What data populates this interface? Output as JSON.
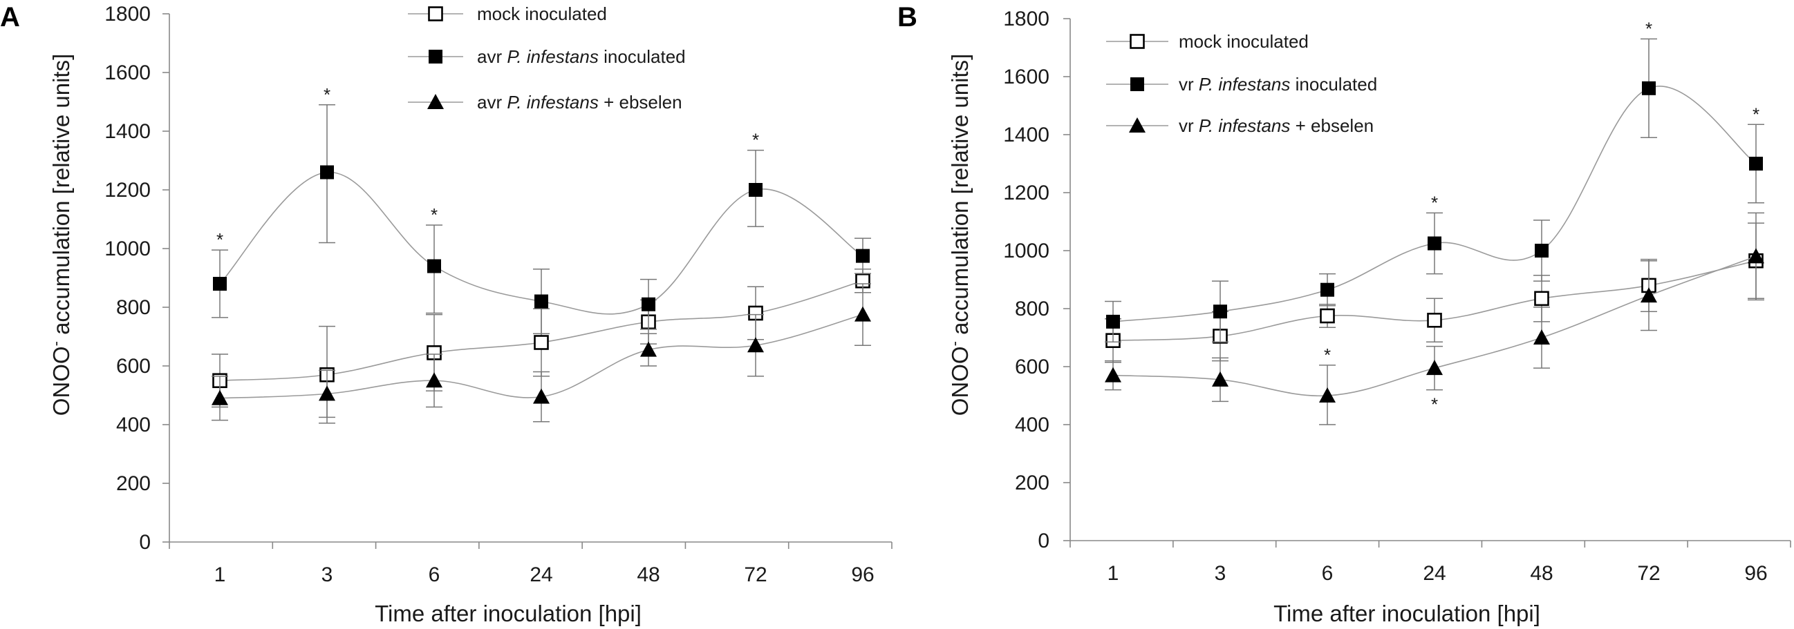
{
  "chart_data": [
    {
      "panel": "A",
      "type": "line",
      "xlabel": "Time after inoculation [hpi]",
      "ylabel_parts": [
        "ONOO",
        "-",
        " accumulation [relative units]"
      ],
      "categories": [
        "1",
        "3",
        "6",
        "24",
        "48",
        "72",
        "96"
      ],
      "ylim": [
        0,
        1800
      ],
      "yticks": [
        "0",
        "200",
        "400",
        "600",
        "800",
        "1000",
        "1200",
        "1400",
        "1600",
        "1800"
      ],
      "legend_position": "top-center",
      "series": [
        {
          "name": "mock inoculated",
          "legend_parts": [
            "mock inoculated"
          ],
          "marker": "square-open",
          "values": [
            550,
            570,
            645,
            680,
            750,
            780,
            890
          ],
          "err_up": [
            90,
            165,
            130,
            115,
            75,
            90,
            40
          ],
          "err_down": [
            90,
            165,
            130,
            115,
            75,
            90,
            40
          ]
        },
        {
          "name": "avr P. infestans inoculated",
          "legend_parts": [
            "avr ",
            "P. infestans",
            " inoculated"
          ],
          "marker": "square-filled",
          "values": [
            880,
            1260,
            940,
            820,
            810,
            1200,
            975
          ],
          "err_up": [
            115,
            230,
            140,
            110,
            85,
            135,
            60
          ],
          "err_down": [
            115,
            240,
            160,
            110,
            85,
            125,
            60
          ]
        },
        {
          "name": "avr P. infestans + ebselen",
          "legend_parts": [
            "avr ",
            "P. infestans",
            " + ebselen"
          ],
          "marker": "triangle-filled",
          "values": [
            490,
            505,
            550,
            495,
            655,
            670,
            775
          ],
          "err_up": [
            75,
            80,
            90,
            85,
            55,
            105,
            105
          ],
          "err_down": [
            75,
            80,
            90,
            85,
            55,
            105,
            105
          ]
        }
      ],
      "annotations": [
        {
          "text": "*",
          "series": 1,
          "index": 0,
          "side": "above"
        },
        {
          "text": "*",
          "series": 1,
          "index": 1,
          "side": "above"
        },
        {
          "text": "*",
          "series": 1,
          "index": 2,
          "side": "above"
        },
        {
          "text": "*",
          "series": 1,
          "index": 5,
          "side": "above"
        }
      ]
    },
    {
      "panel": "B",
      "type": "line",
      "xlabel": "Time after inoculation [hpi]",
      "ylabel_parts": [
        "ONOO",
        "-",
        " accumulation [relative units]"
      ],
      "categories": [
        "1",
        "3",
        "6",
        "24",
        "48",
        "72",
        "96"
      ],
      "ylim": [
        0,
        1800
      ],
      "yticks": [
        "0",
        "200",
        "400",
        "600",
        "800",
        "1000",
        "1200",
        "1400",
        "1600",
        "1800"
      ],
      "legend_position": "top-left",
      "series": [
        {
          "name": "mock inoculated",
          "legend_parts": [
            "mock inoculated"
          ],
          "marker": "square-open",
          "values": [
            690,
            705,
            775,
            760,
            835,
            880,
            965
          ],
          "err_up": [
            75,
            85,
            40,
            75,
            80,
            90,
            130
          ],
          "err_down": [
            75,
            85,
            40,
            75,
            80,
            90,
            130
          ]
        },
        {
          "name": "vr P. infestans inoculated",
          "legend_parts": [
            "vr ",
            "P. infestans",
            " inoculated"
          ],
          "marker": "square-filled",
          "values": [
            755,
            790,
            865,
            1025,
            1000,
            1560,
            1300
          ],
          "err_up": [
            70,
            105,
            55,
            105,
            105,
            170,
            135
          ],
          "err_down": [
            70,
            105,
            55,
            105,
            105,
            170,
            135
          ]
        },
        {
          "name": "vr P. infestans + ebselen",
          "legend_parts": [
            "vr ",
            "P. infestans",
            " + ebselen"
          ],
          "marker": "triangle-filled",
          "values": [
            570,
            555,
            500,
            595,
            700,
            845,
            980
          ],
          "err_up": [
            50,
            75,
            105,
            75,
            105,
            120,
            150
          ],
          "err_down": [
            50,
            75,
            100,
            75,
            105,
            120,
            150
          ]
        }
      ],
      "annotations": [
        {
          "text": "*",
          "series": 1,
          "index": 3,
          "side": "above"
        },
        {
          "text": "*",
          "series": 1,
          "index": 5,
          "side": "above"
        },
        {
          "text": "*",
          "series": 1,
          "index": 6,
          "side": "above"
        },
        {
          "text": "*",
          "series": 2,
          "index": 2,
          "side": "above"
        },
        {
          "text": "*",
          "series": 2,
          "index": 3,
          "side": "below"
        }
      ]
    }
  ]
}
